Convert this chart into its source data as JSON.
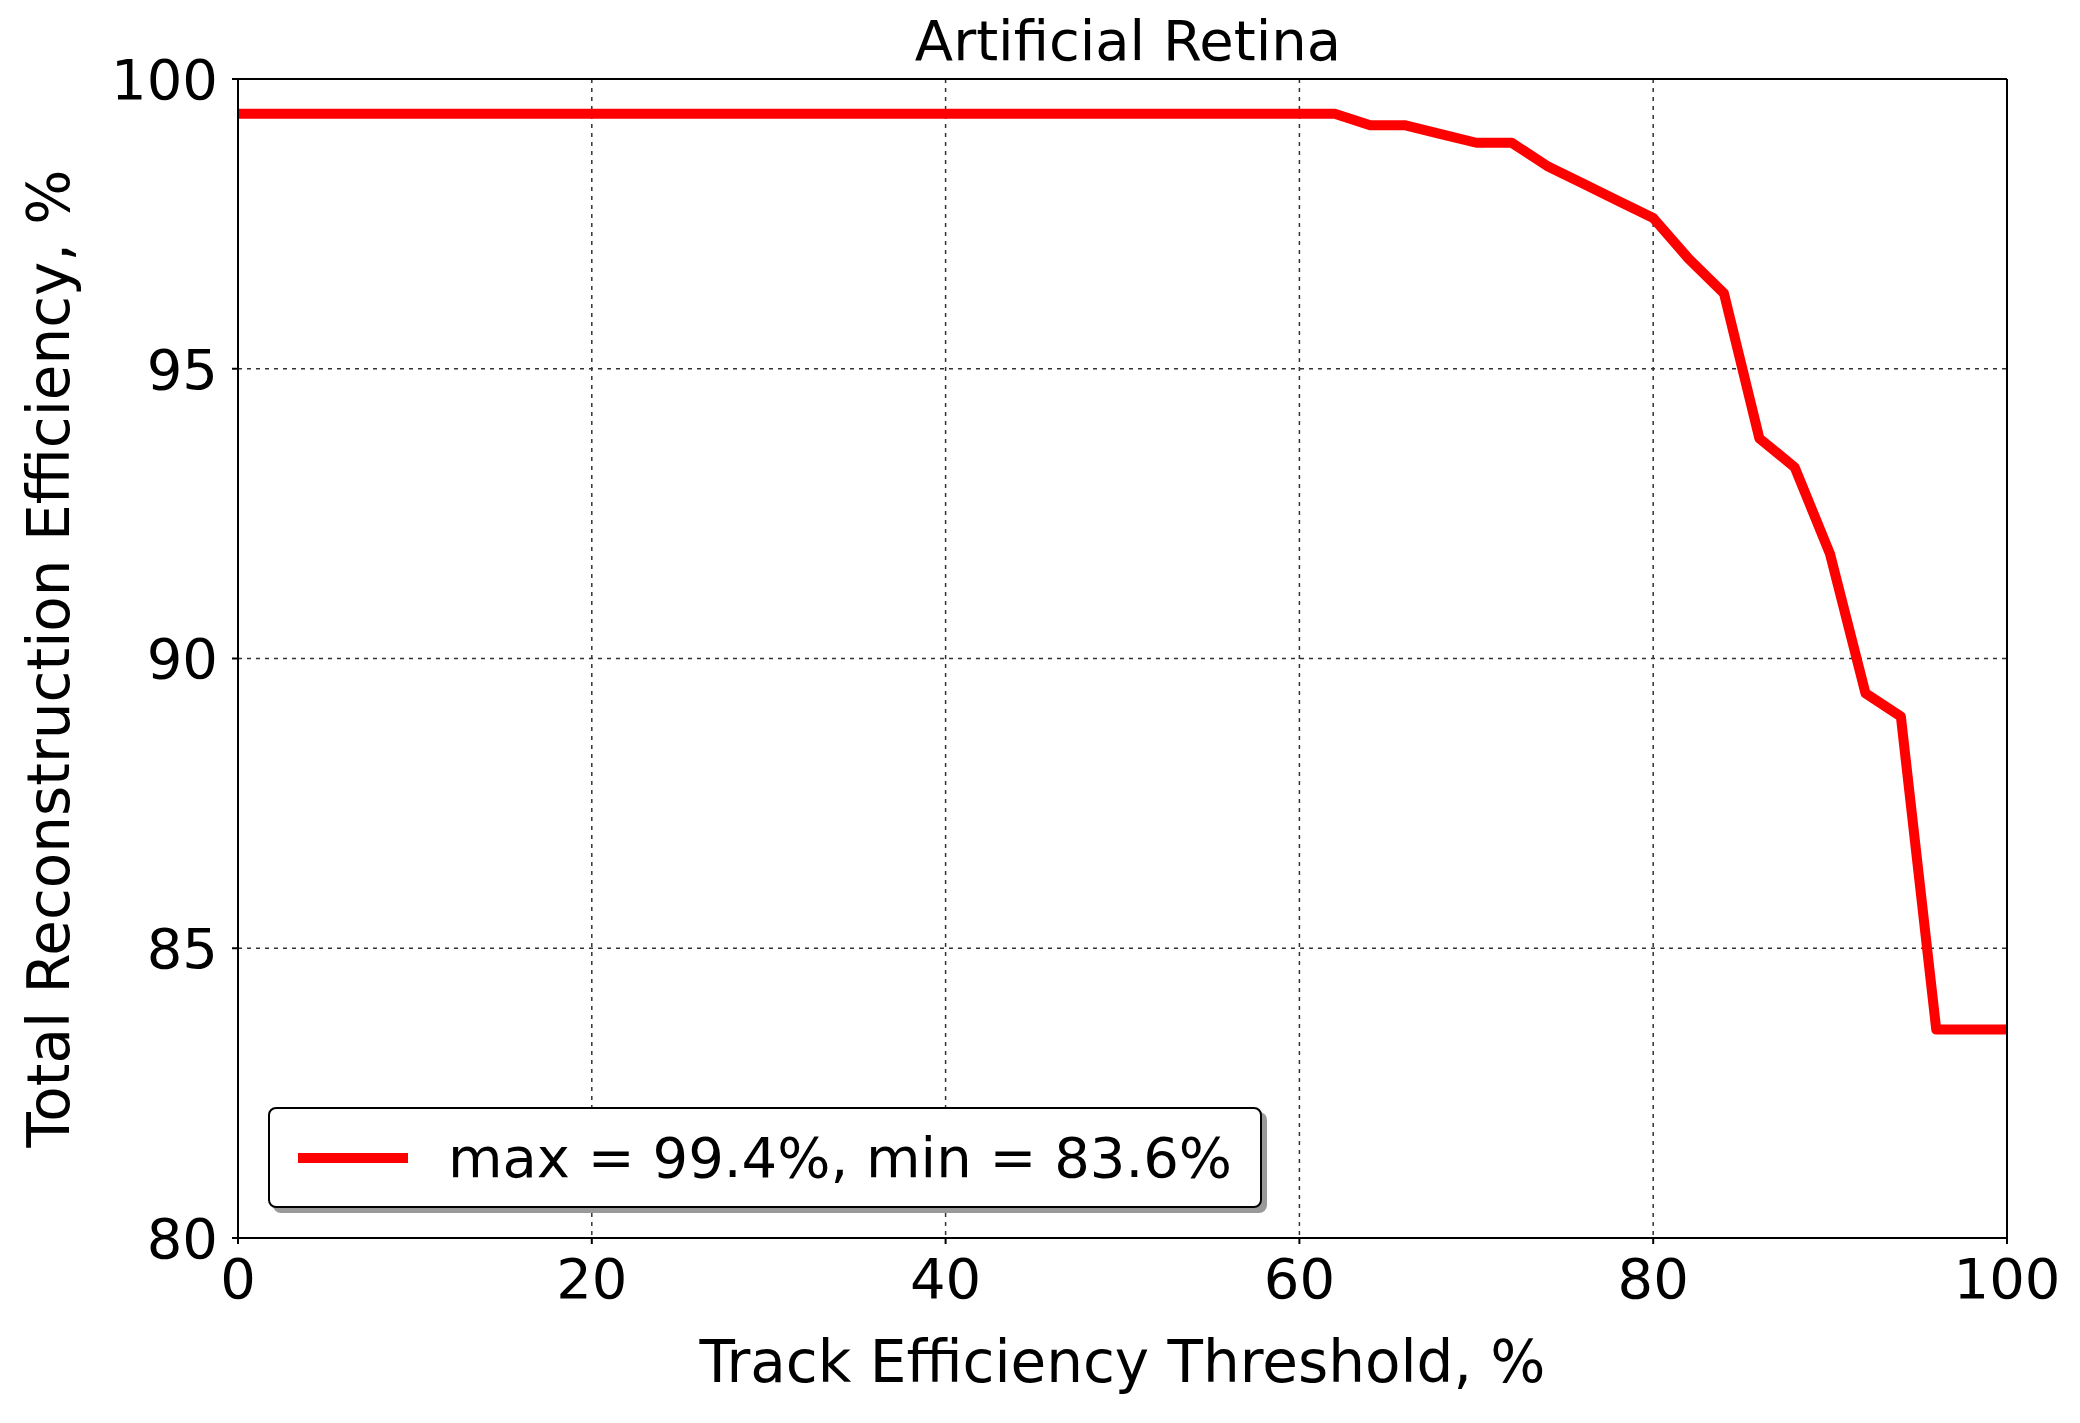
{
  "chart_data": {
    "type": "line",
    "title": "Artificial Retina",
    "xlabel": "Track Efficiency Threshold, %",
    "ylabel": "Total Reconstruction Efficiency, %",
    "x": [
      0,
      2,
      4,
      6,
      8,
      10,
      12,
      14,
      16,
      18,
      20,
      22,
      24,
      26,
      28,
      30,
      32,
      34,
      36,
      38,
      40,
      42,
      44,
      46,
      48,
      50,
      52,
      54,
      56,
      58,
      60,
      62,
      64,
      66,
      68,
      70,
      72,
      74,
      76,
      78,
      80,
      82,
      84,
      86,
      88,
      90,
      92,
      94,
      96,
      98,
      100
    ],
    "series": [
      {
        "name": "max = 99.4%, min = 83.6%",
        "color": "#ff0000",
        "values": [
          99.4,
          99.4,
          99.4,
          99.4,
          99.4,
          99.4,
          99.4,
          99.4,
          99.4,
          99.4,
          99.4,
          99.4,
          99.4,
          99.4,
          99.4,
          99.4,
          99.4,
          99.4,
          99.4,
          99.4,
          99.4,
          99.4,
          99.4,
          99.4,
          99.4,
          99.4,
          99.4,
          99.4,
          99.4,
          99.4,
          99.4,
          99.4,
          99.2,
          99.2,
          99.05,
          98.9,
          98.9,
          98.5,
          98.2,
          97.9,
          97.6,
          96.9,
          96.3,
          93.8,
          93.3,
          91.8,
          89.4,
          89.0,
          83.6,
          83.6,
          83.6
        ]
      }
    ],
    "xlim": [
      0,
      100
    ],
    "xticks": [
      0,
      20,
      40,
      60,
      80,
      100
    ],
    "ylim": [
      80,
      100
    ],
    "yticks": [
      80,
      85,
      90,
      95,
      100
    ],
    "grid": true,
    "legend": "bottom left",
    "marker": "none",
    "line_style": "solid"
  }
}
